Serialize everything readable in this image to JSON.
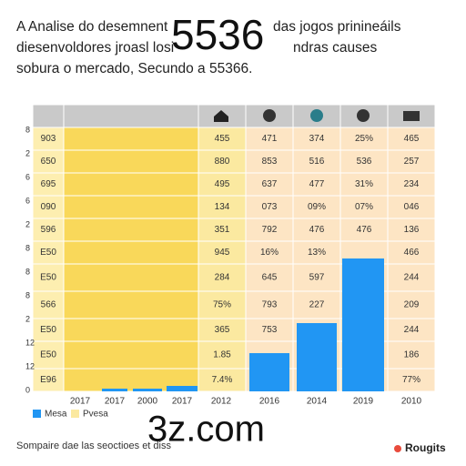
{
  "header": {
    "lines": [
      "A Analise do desemnent",
      "das jogos prinineáils",
      "diesenvoldores jroasl losi",
      "ndras causes",
      "sobura o mercado, Secundo a 55366."
    ],
    "overlay": "5536"
  },
  "table": {
    "side_labels": [
      "8",
      "2",
      "6",
      "6",
      "2",
      "8",
      "8",
      "8",
      "2",
      "12",
      "12",
      "0"
    ],
    "rows": [
      [
        "903",
        "455",
        "471",
        "374",
        "25%",
        "465"
      ],
      [
        "650",
        "880",
        "853",
        "516",
        "536",
        "257"
      ],
      [
        "695",
        "495",
        "637",
        "477",
        "31%",
        "234"
      ],
      [
        "090",
        "134",
        "073",
        "09%",
        "07%",
        "046"
      ],
      [
        "596",
        "351",
        "792",
        "476",
        "476",
        "136"
      ],
      [
        "E50",
        "945",
        "16%",
        "13%",
        "",
        "466"
      ],
      [
        "E50",
        "284",
        "645",
        "597",
        "",
        "244"
      ],
      [
        "566",
        "75%",
        "793",
        "227",
        "",
        "209"
      ],
      [
        "E50",
        "365",
        "753",
        "",
        "",
        "244"
      ],
      [
        "E50",
        "1.85",
        "",
        "",
        "",
        "186"
      ],
      [
        "E96",
        "7.4%",
        "",
        "",
        "",
        "77%"
      ]
    ]
  },
  "chart_data": {
    "type": "bar",
    "categories": [
      "2017",
      "2017",
      "2000",
      "2017",
      "2012",
      "2016",
      "2014",
      "2019",
      "2010"
    ],
    "values": [
      0,
      3,
      3,
      6,
      0,
      42,
      75,
      146,
      0
    ],
    "ylim": [
      0,
      315
    ],
    "color": "#2196f3",
    "legend": [
      {
        "name": "Mesa",
        "color": "#2196f3"
      },
      {
        "name": "Pvesa",
        "color": "#fbe9a0"
      }
    ]
  },
  "footer": {
    "note": "Sompaire dae las seoctioes et diss",
    "brand": "Rougits",
    "watermark": "3z.com"
  }
}
